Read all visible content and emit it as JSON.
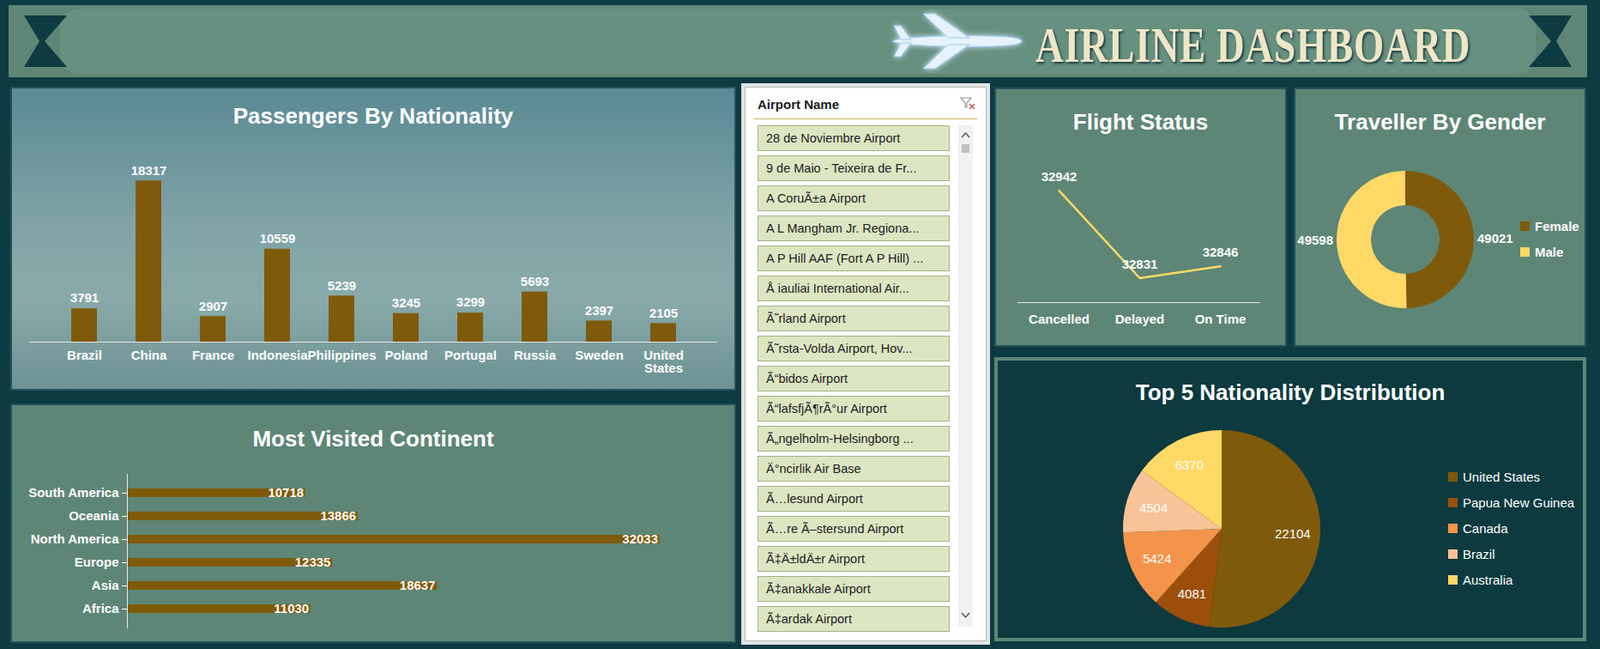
{
  "title": "AIRLINE DASHBOARD",
  "slicer": {
    "title": "Airport Name",
    "items": [
      "28 de Noviembre Airport",
      "9 de Maio - Teixeira de Fr...",
      "A CoruÃ±a Airport",
      "A L Mangham Jr. Regiona...",
      "A P Hill AAF (Fort A P Hill) ...",
      "Å iauliai International Air...",
      "Ã˜rland Airport",
      "Ã˜rsta-Volda Airport, Hov...",
      "Ã“bidos Airport",
      "Ã“lafsfjÃ¶rÃ°ur Airport",
      "Ã„ngelholm-Helsingborg ...",
      "Ä°ncirlik Air Base",
      "Ã…lesund Airport",
      "Ã…re Ã–stersund Airport",
      "Ã‡Ä±ldÄ±r Airport",
      "Ã‡anakkale Airport",
      "Ã‡ardak Airport"
    ]
  },
  "chart_data": [
    {
      "type": "bar",
      "title": "Passengers By Nationality",
      "categories": [
        "Brazil",
        "China",
        "France",
        "Indonesia",
        "Philippines",
        "Poland",
        "Portugal",
        "Russia",
        "Sweden",
        "United States"
      ],
      "values": [
        3791,
        18317,
        2907,
        10559,
        5239,
        3245,
        3299,
        5693,
        2397,
        2105
      ],
      "color": "#7f5a0a",
      "ylim": [
        0,
        20000
      ],
      "data_labels": true,
      "tick_labels": "x"
    },
    {
      "type": "bar",
      "orientation": "horizontal",
      "title": "Most Visited Continent",
      "categories": [
        "South America",
        "Oceania",
        "North America",
        "Europe",
        "Asia",
        "Africa"
      ],
      "values": [
        10718,
        13866,
        32033,
        12335,
        18637,
        11030
      ],
      "color": "#7f5a0a",
      "xlim": [
        0,
        35000
      ],
      "data_labels": true,
      "tick_labels": "y"
    },
    {
      "type": "line",
      "title": "Flight Status",
      "categories": [
        "Cancelled",
        "Delayed",
        "On Time"
      ],
      "values": [
        32942,
        32831,
        32846
      ],
      "color": "#ffd966",
      "ylim": [
        32800,
        32960
      ],
      "data_labels": true,
      "tick_labels": "x"
    },
    {
      "type": "donut",
      "title": "Traveller By Gender",
      "categories": [
        "Female",
        "Male"
      ],
      "values": [
        49021,
        49598
      ],
      "colors": [
        "#7f5a0a",
        "#ffd966"
      ],
      "legend": "right",
      "data_labels": true
    },
    {
      "type": "pie",
      "title": "Top 5 Nationality Distribution",
      "categories": [
        "United States",
        "Papua New Guinea",
        "Canada",
        "Brazil",
        "Australia"
      ],
      "values": [
        22104,
        4081,
        5424,
        4504,
        6370
      ],
      "colors": [
        "#7f5a0a",
        "#9c4f0a",
        "#f4944a",
        "#f9c397",
        "#ffd966"
      ],
      "legend": "right",
      "data_labels": true
    }
  ]
}
